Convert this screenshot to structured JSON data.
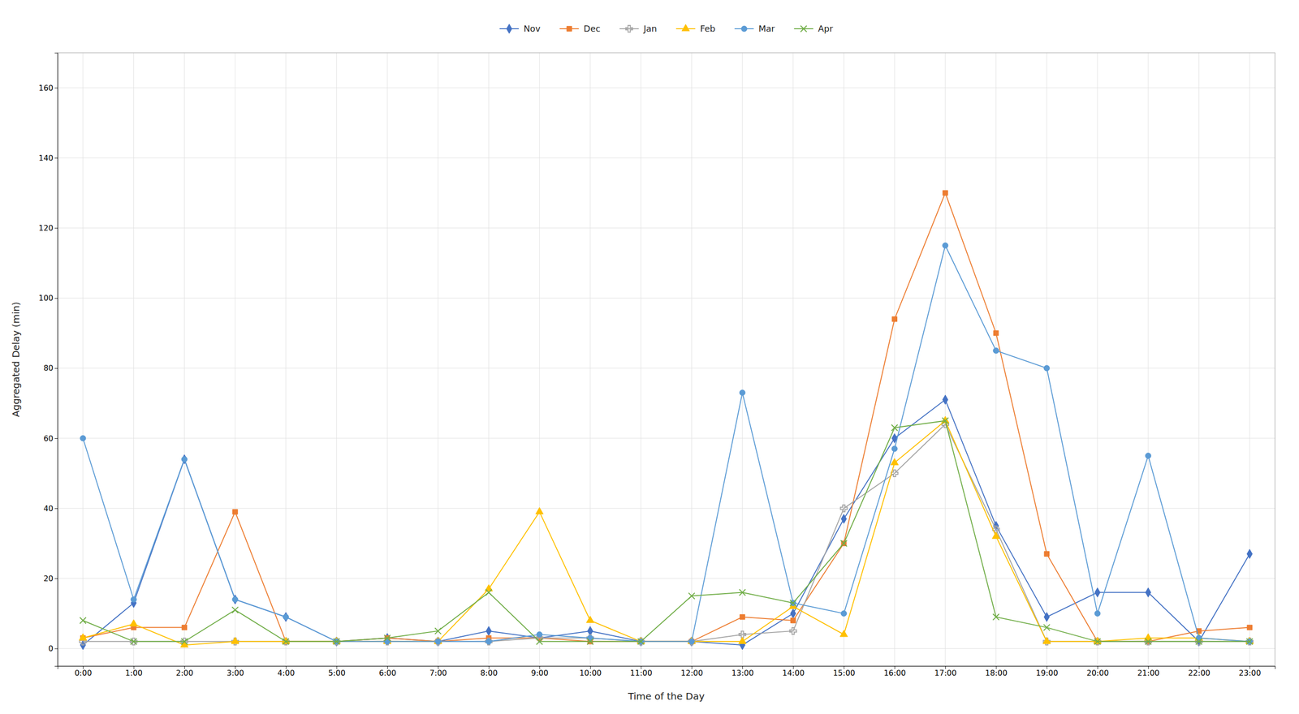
{
  "chart_data": {
    "type": "line",
    "x_label": "Time of the Day",
    "y_label": "Aggregated Delay (min)",
    "categories": [
      "0:00",
      "1:00",
      "2:00",
      "3:00",
      "4:00",
      "5:00",
      "6:00",
      "7:00",
      "8:00",
      "9:00",
      "10:00",
      "11:00",
      "12:00",
      "13:00",
      "14:00",
      "15:00",
      "16:00",
      "17:00",
      "18:00",
      "19:00",
      "20:00",
      "21:00",
      "22:00",
      "23:00"
    ],
    "series": [
      {
        "name": "Nov",
        "color": "#4472C4",
        "marker": "diamond",
        "values": [
          1,
          13,
          54,
          14,
          9,
          2,
          3,
          2,
          5,
          3,
          5,
          2,
          2,
          1,
          10,
          37,
          60,
          71,
          35,
          9,
          16,
          16,
          2,
          27
        ]
      },
      {
        "name": "Dec",
        "color": "#ED7D31",
        "marker": "square",
        "values": [
          3,
          6,
          6,
          39,
          2,
          2,
          3,
          2,
          3,
          3,
          2,
          2,
          2,
          9,
          8,
          30,
          94,
          130,
          90,
          27,
          2,
          2,
          5,
          6
        ]
      },
      {
        "name": "Jan",
        "color": "#A5A5A5",
        "marker": "plus",
        "values": [
          2,
          2,
          2,
          2,
          2,
          2,
          2,
          2,
          2,
          3,
          3,
          2,
          2,
          4,
          5,
          40,
          50,
          64,
          34,
          2,
          2,
          2,
          2,
          2
        ]
      },
      {
        "name": "Feb",
        "color": "#FFC000",
        "marker": "triangle",
        "values": [
          3,
          7,
          1,
          2,
          2,
          2,
          2,
          2,
          17,
          39,
          8,
          2,
          2,
          2,
          12,
          4,
          53,
          65,
          32,
          2,
          2,
          3,
          3,
          2
        ]
      },
      {
        "name": "Mar",
        "color": "#5B9BD5",
        "marker": "circle",
        "values": [
          60,
          14,
          54,
          14,
          9,
          2,
          2,
          2,
          2,
          4,
          3,
          2,
          2,
          73,
          13,
          10,
          57,
          115,
          85,
          80,
          10,
          55,
          3,
          2
        ]
      },
      {
        "name": "Apr",
        "color": "#70AD47",
        "marker": "x",
        "values": [
          8,
          2,
          2,
          11,
          2,
          2,
          3,
          5,
          16,
          2,
          2,
          2,
          15,
          16,
          13,
          30,
          63,
          65,
          9,
          6,
          2,
          2,
          2,
          2
        ]
      }
    ],
    "ylim": [
      -5,
      170
    ],
    "yticks": [
      0,
      20,
      40,
      60,
      80,
      100,
      120,
      140,
      160
    ],
    "grid": true,
    "legend": "top"
  }
}
